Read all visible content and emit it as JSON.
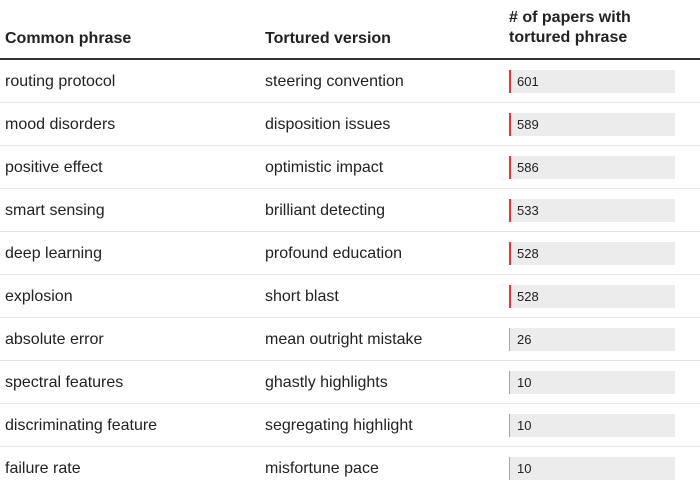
{
  "chart_data": {
    "type": "table",
    "headers": [
      "Common phrase",
      "Tortured version",
      "# of papers with tortured phrase"
    ],
    "rows": [
      {
        "common": "routing protocol",
        "tortured": "steering convention",
        "papers": 601
      },
      {
        "common": "mood disorders",
        "tortured": "disposition issues",
        "papers": 589
      },
      {
        "common": "positive effect",
        "tortured": "optimistic impact",
        "papers": 586
      },
      {
        "common": "smart sensing",
        "tortured": "brilliant detecting",
        "papers": 533
      },
      {
        "common": "deep learning",
        "tortured": "profound education",
        "papers": 528
      },
      {
        "common": "explosion",
        "tortured": "short blast",
        "papers": 528
      },
      {
        "common": "absolute error",
        "tortured": "mean outright mistake",
        "papers": 26
      },
      {
        "common": "spectral features",
        "tortured": "ghastly highlights",
        "papers": 10
      },
      {
        "common": "discriminating feature",
        "tortured": "segregating highlight",
        "papers": 10
      },
      {
        "common": "failure rate",
        "tortured": "misfortune pace",
        "papers": 10
      }
    ],
    "bar_scale_max": 50000,
    "bar_color": "#d93a3a",
    "track_color": "#ececec"
  }
}
